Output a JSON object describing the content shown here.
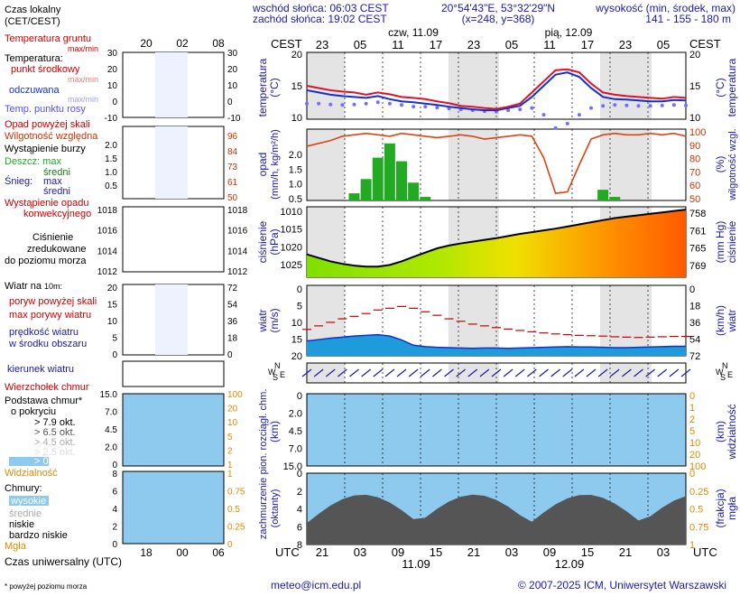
{
  "header": {
    "sunrise": "wschód słońca: 06:03 CEST",
    "sunset": "zachód słońca: 19:02 CEST",
    "coords": "20°54'43\"E, 53°32'29\"N",
    "grid": "(x=248,  y=368)",
    "height_title": "wysokość (min, środek, max)",
    "height_values": "141 - 155 - 180 m"
  },
  "legend": {
    "local_time": "Czas lokalny",
    "local_time_zone": "(CET/CEST)",
    "soil_temp": "Temperatura gruntu",
    "soil_temp_sub": "max/min",
    "temperature": "Temperatura:",
    "temp_mid": "punkt środkowy",
    "temp_max_min": "max/min",
    "felt": "odczuwana",
    "felt_max_min": "max/min",
    "dew_point": "Temp. punktu rosy",
    "precip_over": "Opad powyżej skali",
    "rh": "Wilgotność względna",
    "storm": "Wystąpienie burzy",
    "rain": "Deszcz: max",
    "rain_mean": "średni",
    "snow": "Śnieg:",
    "snow_max": "max",
    "snow_mean": "średni",
    "conv1": "Wystąpienie opadu",
    "conv2": "konwekcyjnego",
    "pressure1": "Ciśnienie",
    "pressure2": "zredukowane",
    "pressure3": "do poziomu morza",
    "wind_title": "Wiatr na ",
    "wind_height": "10m:",
    "gust_over": "poryw powyżej skali",
    "gust_max": "max porywy wiatru",
    "wind_speed1": "prędkość wiatru",
    "wind_speed2": "w środku obszaru",
    "wind_dir": "kierunek wiatru",
    "cloud_top": "Wierzchołek chmur",
    "cloud_base1": "Podstawa chmur*",
    "cloud_base2": "o pokryciu",
    "okt79": "> 7.9 okt.",
    "okt65": "> 6.5 okt.",
    "okt45": "> 4.5 okt.",
    "okt25": "> 2.5 okt.",
    "okt01": "> 0.1 okt.",
    "visibility": "Widzialność",
    "clouds": "Chmury:",
    "high": "wysokie",
    "mid": "średnie",
    "low": "niskie",
    "very_low": "bardzo niskie",
    "fog": "Mgła",
    "utc_title": "Czas uniwersalny (UTC)",
    "footnote": "* powyżej poziomu morza"
  },
  "axes": {
    "cest": "CEST",
    "utc": "UTC",
    "day1": "czw, 11.09",
    "day2": "pią, 12.09",
    "day1_utc": "11.09",
    "day2_utc": "12.09",
    "temp_label": "temperatura",
    "temp_unit": "(°C)",
    "precip_label": "opad",
    "precip_unit": "(mm/h, kg/m²/h)",
    "rh_label": "wilgotność wzgl.",
    "rh_unit": "(%)",
    "pres_label": "ciśnienie",
    "pres_unit": "(hPa)",
    "pres_unit2": "(mm Hg)",
    "wind_label": "wiatr",
    "wind_unit": "(m/s)",
    "wind_unit2": "(km/h)",
    "cloud_label": "pion. rozciągł. chm.",
    "cloud_unit": "(km)",
    "vis_label": "widzialność",
    "vis_unit": "(km)",
    "cover_label": "zachmurzenie",
    "cover_unit": "(oktanty)",
    "fog_label": "mgła",
    "fog_unit": "(frakcja)",
    "n": "N",
    "w": "W",
    "s": "S",
    "e": "E"
  },
  "footer": {
    "email": "meteo@icm.edu.pl",
    "copyright": "© 2007-2025 ICM, Uniwersytet Warszawski"
  },
  "chart_data": {
    "type": "line",
    "cest_ticks": [
      "23",
      "05",
      "11",
      "17",
      "23",
      "05",
      "11",
      "17",
      "23",
      "05"
    ],
    "utc_ticks": [
      "21",
      "03",
      "09",
      "15",
      "21",
      "03",
      "09",
      "15",
      "21",
      "03"
    ],
    "temperature_c": [
      17.5,
      17,
      16.5,
      16.2,
      16,
      15.5,
      16,
      15.6,
      15,
      14.8,
      14.5,
      14,
      13.6,
      13,
      12.8,
      12.5,
      12.3,
      12.8,
      13.5,
      16,
      18.5,
      21,
      21.2,
      20.5,
      18,
      16,
      15.5,
      15.2,
      15.0,
      14.8,
      14.6,
      15,
      14.8
    ],
    "felt_c": [
      16.5,
      16,
      15.5,
      15.2,
      15,
      14.8,
      15.2,
      14.5,
      14,
      13.8,
      13.5,
      13.2,
      12.8,
      12.5,
      12.2,
      12,
      12,
      12.5,
      13,
      15,
      17.5,
      20,
      20.5,
      19.5,
      17,
      15,
      14.5,
      14.4,
      14.2,
      14,
      14,
      14.3,
      14.2
    ],
    "dew_point_c": [
      13.5,
      13.5,
      13.3,
      13.2,
      13.3,
      13.5,
      13.8,
      13.5,
      13.2,
      12.8,
      12.8,
      12.6,
      12.4,
      12.2,
      12,
      11.8,
      11.7,
      12,
      12.2,
      12.5,
      11,
      8,
      9,
      11,
      12.5,
      13,
      13.2,
      13.1,
      13,
      13,
      13.1,
      13.2,
      13.1
    ],
    "temp_axis": [
      10,
      25
    ],
    "rh_percent": [
      88,
      90,
      92,
      95,
      96,
      97,
      96,
      95,
      97,
      96,
      95,
      94,
      95,
      96,
      95,
      93,
      94,
      95,
      96,
      95,
      80,
      55,
      56,
      75,
      93,
      96,
      97,
      96,
      96,
      97,
      96,
      97,
      95
    ],
    "rh_axis": [
      50,
      100
    ],
    "precip_mm": [
      0,
      0,
      0,
      0,
      0.2,
      0.6,
      1.2,
      1.6,
      1.1,
      0.5,
      0.1,
      0,
      0,
      0,
      0,
      0,
      0,
      0,
      0,
      0,
      0,
      0,
      0,
      0,
      0,
      0.3,
      0.1,
      0,
      0,
      0,
      0,
      0,
      0
    ],
    "precip_axis": [
      0,
      2
    ],
    "pressure_hpa": [
      1011.5,
      1010.5,
      1009.5,
      1008.8,
      1008.3,
      1008,
      1008,
      1008.5,
      1009.5,
      1010.8,
      1012,
      1013.2,
      1014,
      1014.6,
      1015.1,
      1015.6,
      1016.1,
      1016.7,
      1017.3,
      1017.8,
      1018.3,
      1018.8,
      1019.4,
      1020,
      1020.6,
      1021.2,
      1021.8,
      1022.2,
      1022.6,
      1023,
      1023.4,
      1023.8,
      1024.2
    ],
    "pressure_axis": [
      1005,
      1025
    ],
    "pressure_mmhg_ticks": [
      "758",
      "761",
      "765",
      "769"
    ],
    "wind_ms": [
      4.2,
      4.6,
      5,
      5.3,
      5.6,
      5.8,
      6,
      5.6,
      4.5,
      3,
      2.6,
      2.4,
      2.3,
      2.2,
      2.1,
      2.2,
      2.2,
      2.1,
      2.2,
      2.3,
      2.4,
      2.5,
      2.6,
      2.5,
      2.5,
      2.4,
      2.3,
      2.3,
      2.4,
      2.5,
      2.6,
      2.7,
      2.7
    ],
    "gust_ms": [
      7.5,
      8.5,
      9.5,
      10.5,
      11.2,
      12,
      13,
      13.5,
      14,
      13.5,
      12.5,
      11.5,
      10.5,
      9.8,
      9,
      8.5,
      8,
      7.6,
      7.2,
      6.8,
      6.5,
      6.2,
      6,
      5.8,
      5.7,
      5.6,
      5.4,
      5.3,
      5.2,
      5.3,
      5.4,
      5.5,
      5.5
    ],
    "wind_axis": [
      0,
      20
    ],
    "wind_kmh_ticks": [
      "0",
      "18",
      "36",
      "54",
      "72"
    ],
    "cloud_axis": [
      0,
      15
    ],
    "visibility_axis_km": [
      "0",
      "1",
      "2",
      "5",
      "10",
      "20",
      "100"
    ],
    "cloud_cover_axis": [
      0,
      8
    ],
    "fog_fraction_ticks": [
      "0",
      "0.25",
      "0.5",
      "0.75",
      "1"
    ],
    "left_temp_ticks": [
      "-10",
      "0",
      "10",
      "20",
      "30"
    ],
    "left_precip_ticks": [
      "0.5",
      "1.0",
      "1.5",
      "2.0"
    ],
    "left_rh_ticks": [
      "50",
      "61",
      "73",
      "84",
      "96"
    ],
    "left_pres_ticks": [
      "1012",
      "1014",
      "1016",
      "1018"
    ],
    "left_wind_ticks": [
      "0",
      "5",
      "10",
      "15",
      "20"
    ],
    "left_wind_kmh": [
      "0",
      "18",
      "36",
      "54",
      "72"
    ],
    "left_cloud_ticks": [
      "0",
      "2.0",
      "4.5",
      "7.0",
      "15.0"
    ],
    "left_cover_ticks": [
      "0",
      "2",
      "4",
      "6",
      "8"
    ],
    "left_fog_ticks": [
      "0",
      "0.25",
      "0.5",
      "0.75",
      "1"
    ],
    "left_vis_ticks": [
      "1",
      "2",
      "5",
      "10",
      "20",
      "100"
    ],
    "left_utc": [
      "18",
      "00",
      "06"
    ],
    "left_cest": [
      "20",
      "02",
      "08"
    ],
    "colors": {
      "temperature": "#e0102a",
      "felt": "#1030d0",
      "dew_point": "#7070ff",
      "rh": "#dd4411",
      "precip": "#22aa22",
      "pressure_fill": "#f0e000",
      "wind_fill": "#1f9bdb",
      "gust": "#cc0000",
      "cloud_blue": "#8ec9ee",
      "fog": "#f0a000"
    }
  }
}
